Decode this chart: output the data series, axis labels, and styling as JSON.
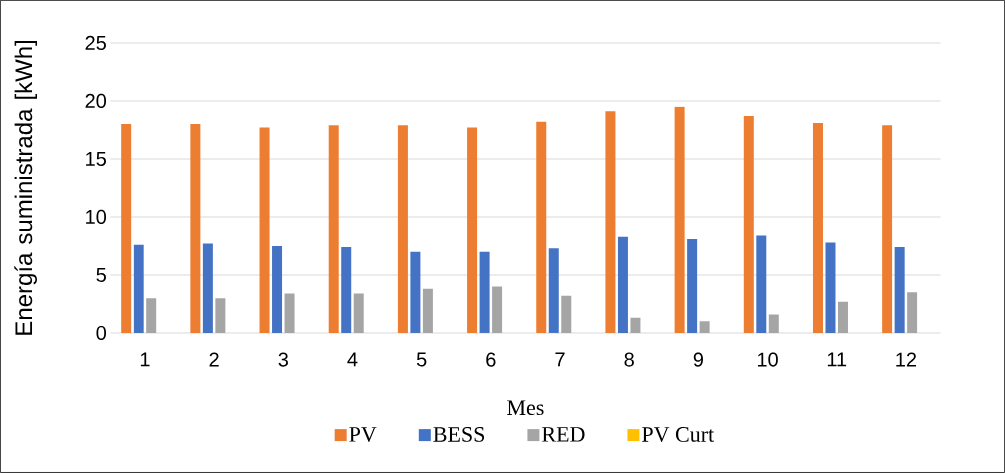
{
  "chart_data": {
    "type": "bar",
    "xlabel": "Mes",
    "ylabel": "Energía suministrada [kWh]",
    "categories": [
      "1",
      "2",
      "3",
      "4",
      "5",
      "6",
      "7",
      "8",
      "9",
      "10",
      "11",
      "12"
    ],
    "series": [
      {
        "name": "PV",
        "color": "#ed7d31",
        "values": [
          18.0,
          18.0,
          17.7,
          17.9,
          17.9,
          17.7,
          18.2,
          19.1,
          19.5,
          18.7,
          18.1,
          17.9
        ]
      },
      {
        "name": "BESS",
        "color": "#4472c4",
        "values": [
          7.6,
          7.7,
          7.5,
          7.4,
          7.0,
          7.0,
          7.3,
          8.3,
          8.1,
          8.4,
          7.8,
          7.4
        ]
      },
      {
        "name": "RED",
        "color": "#a5a5a5",
        "values": [
          3.0,
          3.0,
          3.4,
          3.4,
          3.8,
          4.0,
          3.2,
          1.3,
          1.0,
          1.6,
          2.7,
          3.5
        ]
      },
      {
        "name": "PV Curt",
        "color": "#ffc000",
        "values": [
          0,
          0,
          0,
          0,
          0,
          0,
          0,
          0,
          0,
          0,
          0,
          0
        ]
      }
    ],
    "ylim": [
      0,
      25
    ],
    "yticks": [
      0,
      5,
      10,
      15,
      20,
      25
    ],
    "grid": "y",
    "legend": "bottom"
  }
}
